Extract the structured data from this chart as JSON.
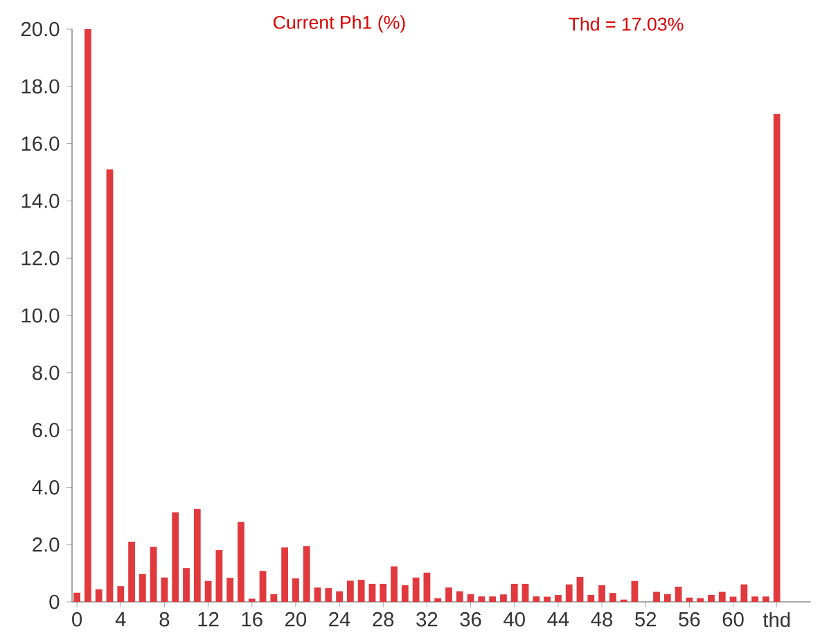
{
  "chart_data": {
    "type": "bar",
    "title": "Current Ph1 (%)",
    "subtitle": "Thd = 17.03%",
    "categories": [
      "0",
      null,
      null,
      null,
      "4",
      null,
      null,
      null,
      "8",
      null,
      null,
      null,
      "12",
      null,
      null,
      null,
      "16",
      null,
      null,
      null,
      "20",
      null,
      null,
      null,
      "24",
      null,
      null,
      null,
      "28",
      null,
      null,
      null,
      "32",
      null,
      null,
      null,
      "36",
      null,
      null,
      null,
      "40",
      null,
      null,
      null,
      "44",
      null,
      null,
      null,
      "48",
      null,
      null,
      null,
      "52",
      null,
      null,
      null,
      "56",
      null,
      null,
      null,
      "60",
      null,
      null,
      null,
      "thd"
    ],
    "values": [
      0.32,
      20.0,
      0.44,
      15.1,
      0.55,
      2.1,
      0.97,
      1.92,
      0.85,
      3.13,
      1.18,
      3.24,
      0.73,
      1.81,
      0.84,
      2.79,
      0.11,
      1.08,
      0.27,
      1.9,
      0.82,
      1.95,
      0.5,
      0.48,
      0.37,
      0.74,
      0.77,
      0.63,
      0.63,
      1.24,
      0.58,
      0.85,
      1.02,
      0.13,
      0.5,
      0.37,
      0.27,
      0.19,
      0.19,
      0.26,
      0.63,
      0.63,
      0.19,
      0.18,
      0.24,
      0.61,
      0.87,
      0.24,
      0.58,
      0.31,
      0.08,
      0.73,
      0,
      0.35,
      0.27,
      0.53,
      0.15,
      0.13,
      0.24,
      0.35,
      0.18,
      0.61,
      0.19,
      0.19,
      17.03
    ],
    "color": "#e0393e",
    "ylim": [
      0,
      20
    ],
    "yticks": [
      0,
      {
        "value": 2,
        "label": "2.0"
      },
      {
        "value": 4,
        "label": "4.0"
      },
      {
        "value": 6,
        "label": "6.0"
      },
      {
        "value": 8,
        "label": "8.0"
      },
      {
        "value": 10,
        "label": "10.0"
      },
      {
        "value": 12,
        "label": "12.0"
      },
      {
        "value": 14,
        "label": "14.0"
      },
      {
        "value": 16,
        "label": "16.0"
      },
      {
        "value": 18,
        "label": "18.0"
      },
      {
        "value": 20,
        "label": "20.0"
      }
    ]
  }
}
